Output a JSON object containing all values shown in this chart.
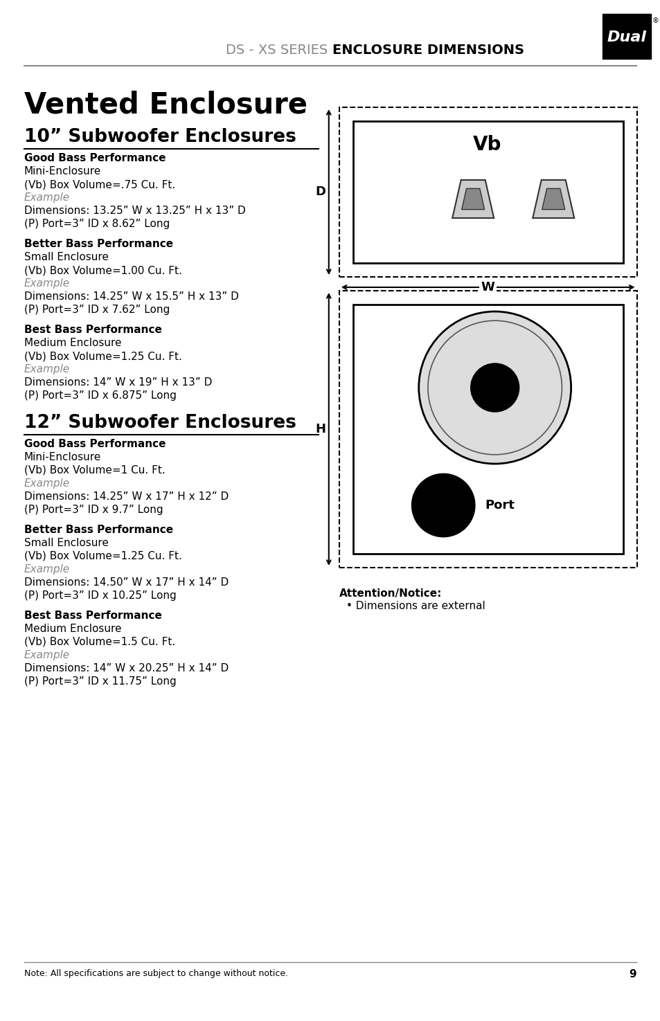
{
  "page_bg": "#ffffff",
  "header_text_light": "DS - XS SERIES ",
  "header_text_bold": "ENCLOSURE DIMENSIONS",
  "header_text_color_light": "#808080",
  "header_text_color_bold": "#000000",
  "header_font_size": 14,
  "title": "Vented Enclosure",
  "title_font_size": 28,
  "subtitle_10": "10” Subwoofer Enclosures",
  "subtitle_12": "12” Subwoofer Enclosures",
  "subtitle_font_size": 18,
  "example_color": "#888888",
  "bold_color": "#000000",
  "normal_color": "#000000",
  "footer_note": "Note: All specifications are subject to change without notice.",
  "footer_page": "9",
  "sections_10": [
    {
      "heading": "Good Bass Performance",
      "line1": "Mini-Enclosure",
      "line2": "(Vb) Box Volume=.75 Cu. Ft.",
      "example": "Example",
      "line3": "Dimensions: 13.25” W x 13.25” H x 13” D",
      "line4": "(P) Port=3” ID x 8.62” Long"
    },
    {
      "heading": "Better Bass Performance",
      "line1": "Small Enclosure",
      "line2": "(Vb) Box Volume=1.00 Cu. Ft.",
      "example": "Example",
      "line3": "Dimensions: 14.25” W x 15.5” H x 13” D",
      "line4": "(P) Port=3” ID x 7.62” Long"
    },
    {
      "heading": "Best Bass Performance",
      "line1": "Medium Enclosure",
      "line2": "(Vb) Box Volume=1.25 Cu. Ft.",
      "example": "Example",
      "line3": "Dimensions: 14” W x 19” H x 13” D",
      "line4": "(P) Port=3” ID x 6.875” Long"
    }
  ],
  "sections_12": [
    {
      "heading": "Good Bass Performance",
      "line1": "Mini-Enclosure",
      "line2": "(Vb) Box Volume=1 Cu. Ft.",
      "example": "Example",
      "line3": "Dimensions: 14.25” W x 17” H x 12” D",
      "line4": "(P) Port=3” ID x 9.7” Long"
    },
    {
      "heading": "Better Bass Performance",
      "line1": "Small Enclosure",
      "line2": "(Vb) Box Volume=1.25 Cu. Ft.",
      "example": "Example",
      "line3": "Dimensions: 14.50” W x 17” H x 14” D",
      "line4": "(P) Port=3” ID x 10.25” Long"
    },
    {
      "heading": "Best Bass Performance",
      "line1": "Medium Enclosure",
      "line2": "(Vb) Box Volume=1.5 Cu. Ft.",
      "example": "Example",
      "line3": "Dimensions: 14” W x 20.25” H x 14” D",
      "line4": "(P) Port=3” ID x 11.75” Long"
    }
  ],
  "attention_heading": "Attention/Notice:",
  "attention_text": "• Dimensions are external"
}
